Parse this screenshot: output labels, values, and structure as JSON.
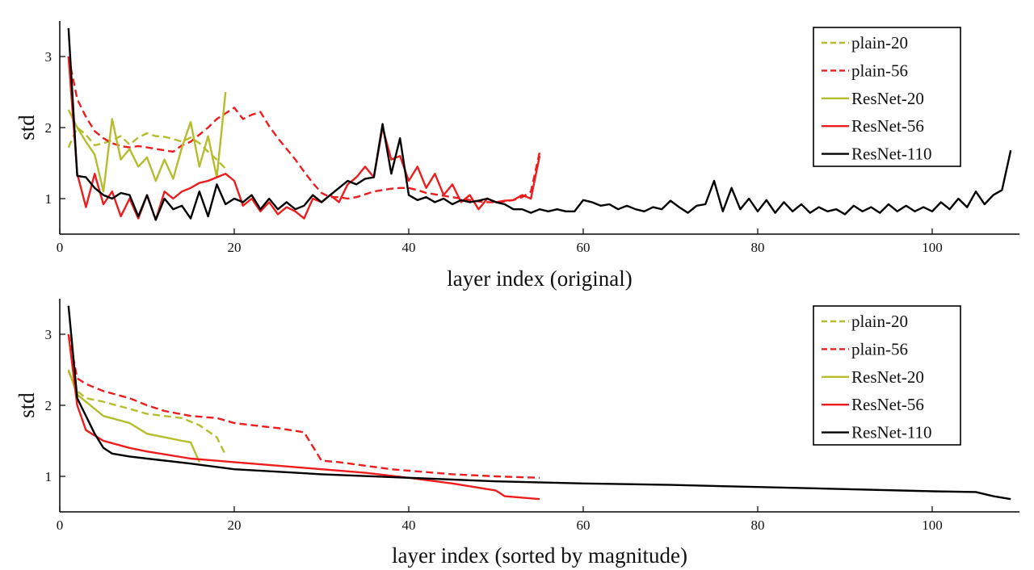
{
  "chart_data": [
    {
      "type": "line",
      "xlabel": "layer index (original)",
      "ylabel": "std",
      "xlim": [
        0,
        110
      ],
      "ylim": [
        0.5,
        3.5
      ],
      "xticks": [
        0,
        20,
        40,
        60,
        80,
        100
      ],
      "yticks": [
        1,
        2,
        3
      ],
      "legend_position": "top-right",
      "series": [
        {
          "name": "plain-20",
          "color": "#b5bd2c",
          "dash": true,
          "x": [
            1,
            2,
            3,
            4,
            5,
            6,
            7,
            8,
            9,
            10,
            11,
            12,
            13,
            14,
            15,
            16,
            17,
            18,
            19
          ],
          "y": [
            1.72,
            2.0,
            1.9,
            1.75,
            1.78,
            1.82,
            1.88,
            1.76,
            1.86,
            1.92,
            1.88,
            1.87,
            1.84,
            1.8,
            1.86,
            1.78,
            1.66,
            1.55,
            1.42
          ]
        },
        {
          "name": "plain-56",
          "color": "#ee1c1c",
          "dash": true,
          "x": [
            1,
            2,
            3,
            4,
            5,
            6,
            7,
            8,
            9,
            10,
            11,
            12,
            13,
            14,
            15,
            16,
            17,
            18,
            19,
            20,
            21,
            22,
            23,
            24,
            25,
            26,
            27,
            28,
            29,
            30,
            31,
            32,
            33,
            34,
            35,
            36,
            37,
            38,
            39,
            40,
            41,
            42,
            43,
            44,
            45,
            46,
            47,
            48,
            49,
            50,
            51,
            52,
            53,
            54,
            55
          ],
          "y": [
            3.0,
            2.4,
            2.15,
            1.95,
            1.85,
            1.78,
            1.74,
            1.72,
            1.74,
            1.72,
            1.7,
            1.68,
            1.66,
            1.75,
            1.8,
            1.9,
            2.0,
            2.12,
            2.2,
            2.28,
            2.12,
            2.18,
            2.22,
            2.02,
            1.85,
            1.7,
            1.55,
            1.38,
            1.22,
            1.08,
            1.02,
            1.02,
            1.0,
            1.02,
            1.06,
            1.1,
            1.12,
            1.14,
            1.15,
            1.15,
            1.12,
            1.08,
            1.06,
            1.04,
            1.02,
            1.0,
            0.98,
            0.96,
            0.95,
            0.95,
            0.96,
            0.98,
            1.02,
            1.1,
            1.65
          ]
        },
        {
          "name": "ResNet-20",
          "color": "#b5bd2c",
          "dash": false,
          "x": [
            1,
            2,
            3,
            4,
            5,
            6,
            7,
            8,
            9,
            10,
            11,
            12,
            13,
            14,
            15,
            16,
            17,
            18,
            19
          ],
          "y": [
            2.25,
            2.0,
            1.8,
            1.62,
            1.1,
            2.12,
            1.55,
            1.7,
            1.45,
            1.58,
            1.25,
            1.55,
            1.28,
            1.72,
            2.08,
            1.45,
            1.88,
            1.3,
            2.5
          ]
        },
        {
          "name": "ResNet-56",
          "color": "#ee1c1c",
          "dash": false,
          "x": [
            1,
            2,
            3,
            4,
            5,
            6,
            7,
            8,
            9,
            10,
            11,
            12,
            13,
            14,
            15,
            16,
            17,
            18,
            19,
            20,
            21,
            22,
            23,
            24,
            25,
            26,
            27,
            28,
            29,
            30,
            31,
            32,
            33,
            34,
            35,
            36,
            37,
            38,
            39,
            40,
            41,
            42,
            43,
            44,
            45,
            46,
            47,
            48,
            49,
            50,
            51,
            52,
            53,
            54,
            55
          ],
          "y": [
            3.0,
            1.35,
            0.88,
            1.35,
            0.92,
            1.1,
            0.75,
            1.0,
            0.72,
            1.05,
            0.7,
            1.1,
            1.0,
            1.1,
            1.15,
            1.22,
            1.25,
            1.3,
            1.35,
            1.25,
            0.9,
            1.0,
            0.82,
            0.95,
            0.78,
            0.88,
            0.82,
            0.72,
            1.0,
            0.95,
            1.05,
            0.95,
            1.2,
            1.3,
            1.45,
            1.3,
            2.0,
            1.55,
            1.6,
            1.25,
            1.45,
            1.15,
            1.35,
            1.05,
            1.2,
            0.95,
            1.05,
            0.85,
            1.0,
            0.95,
            0.97,
            0.98,
            1.05,
            1.0,
            1.6
          ]
        },
        {
          "name": "ResNet-110",
          "color": "#000000",
          "dash": false,
          "x": [
            1,
            2,
            3,
            4,
            5,
            6,
            7,
            8,
            9,
            10,
            11,
            12,
            13,
            14,
            15,
            16,
            17,
            18,
            19,
            20,
            21,
            22,
            23,
            24,
            25,
            26,
            27,
            28,
            29,
            30,
            31,
            32,
            33,
            34,
            35,
            36,
            37,
            38,
            39,
            40,
            41,
            42,
            43,
            44,
            45,
            46,
            47,
            48,
            49,
            50,
            51,
            52,
            53,
            54,
            55,
            56,
            57,
            58,
            59,
            60,
            61,
            62,
            63,
            64,
            65,
            66,
            67,
            68,
            69,
            70,
            71,
            72,
            73,
            74,
            75,
            76,
            77,
            78,
            79,
            80,
            81,
            82,
            83,
            84,
            85,
            86,
            87,
            88,
            89,
            90,
            91,
            92,
            93,
            94,
            95,
            96,
            97,
            98,
            99,
            100,
            101,
            102,
            103,
            104,
            105,
            106,
            107,
            108,
            109
          ],
          "y": [
            3.4,
            1.32,
            1.3,
            1.15,
            1.05,
            1.0,
            1.08,
            1.05,
            0.75,
            1.05,
            0.7,
            1.0,
            0.85,
            0.9,
            0.72,
            1.1,
            0.75,
            1.2,
            0.92,
            1.0,
            0.95,
            1.05,
            0.85,
            1.0,
            0.85,
            0.95,
            0.85,
            0.9,
            1.05,
            0.95,
            1.05,
            1.15,
            1.25,
            1.2,
            1.28,
            1.3,
            2.05,
            1.35,
            1.85,
            1.05,
            0.98,
            1.02,
            0.95,
            1.0,
            0.92,
            0.98,
            0.95,
            0.97,
            1.0,
            0.95,
            0.92,
            0.85,
            0.85,
            0.8,
            0.85,
            0.82,
            0.85,
            0.82,
            0.82,
            0.98,
            0.95,
            0.9,
            0.92,
            0.85,
            0.9,
            0.85,
            0.82,
            0.88,
            0.85,
            0.97,
            0.88,
            0.8,
            0.9,
            0.92,
            1.25,
            0.82,
            1.15,
            0.85,
            1.0,
            0.82,
            0.98,
            0.8,
            0.95,
            0.82,
            0.92,
            0.8,
            0.88,
            0.82,
            0.85,
            0.78,
            0.9,
            0.82,
            0.88,
            0.8,
            0.92,
            0.82,
            0.9,
            0.82,
            0.88,
            0.82,
            0.95,
            0.85,
            1.0,
            0.88,
            1.1,
            0.92,
            1.05,
            1.12,
            1.68
          ]
        }
      ]
    },
    {
      "type": "line",
      "xlabel": "layer index (sorted by magnitude)",
      "ylabel": "std",
      "xlim": [
        0,
        110
      ],
      "ylim": [
        0.5,
        3.5
      ],
      "xticks": [
        0,
        20,
        40,
        60,
        80,
        100
      ],
      "yticks": [
        1,
        2,
        3
      ],
      "legend_position": "top-right",
      "series": [
        {
          "name": "plain-20",
          "color": "#b5bd2c",
          "dash": true,
          "x": [
            1,
            2,
            3,
            5,
            8,
            10,
            12,
            14,
            16,
            18,
            19
          ],
          "y": [
            2.48,
            2.2,
            2.1,
            2.05,
            1.95,
            1.88,
            1.85,
            1.82,
            1.72,
            1.55,
            1.3
          ]
        },
        {
          "name": "plain-56",
          "color": "#ee1c1c",
          "dash": true,
          "x": [
            1,
            2,
            3,
            5,
            8,
            10,
            12,
            15,
            18,
            20,
            22,
            25,
            28,
            30,
            32,
            35,
            38,
            40,
            45,
            50,
            55
          ],
          "y": [
            3.0,
            2.38,
            2.3,
            2.2,
            2.1,
            2.0,
            1.92,
            1.85,
            1.82,
            1.75,
            1.72,
            1.68,
            1.62,
            1.22,
            1.2,
            1.15,
            1.1,
            1.08,
            1.03,
            1.0,
            0.98
          ]
        },
        {
          "name": "ResNet-20",
          "color": "#b5bd2c",
          "dash": false,
          "x": [
            1,
            2,
            3,
            5,
            8,
            10,
            12,
            14,
            15,
            16
          ],
          "y": [
            2.5,
            2.15,
            2.05,
            1.85,
            1.75,
            1.6,
            1.55,
            1.5,
            1.48,
            1.2
          ]
        },
        {
          "name": "ResNet-56",
          "color": "#ee1c1c",
          "dash": false,
          "x": [
            1,
            2,
            3,
            5,
            8,
            10,
            15,
            20,
            25,
            30,
            35,
            40,
            45,
            50,
            51,
            55
          ],
          "y": [
            3.0,
            2.0,
            1.65,
            1.5,
            1.4,
            1.35,
            1.25,
            1.2,
            1.15,
            1.1,
            1.05,
            0.98,
            0.9,
            0.8,
            0.72,
            0.68
          ]
        },
        {
          "name": "ResNet-110",
          "color": "#000000",
          "dash": false,
          "x": [
            1,
            2,
            3,
            4,
            5,
            6,
            8,
            10,
            15,
            20,
            30,
            40,
            50,
            60,
            70,
            80,
            90,
            100,
            105,
            107,
            109
          ],
          "y": [
            3.4,
            2.1,
            1.85,
            1.6,
            1.4,
            1.32,
            1.28,
            1.25,
            1.18,
            1.1,
            1.03,
            0.98,
            0.93,
            0.9,
            0.88,
            0.85,
            0.82,
            0.79,
            0.78,
            0.72,
            0.68
          ]
        }
      ]
    }
  ]
}
